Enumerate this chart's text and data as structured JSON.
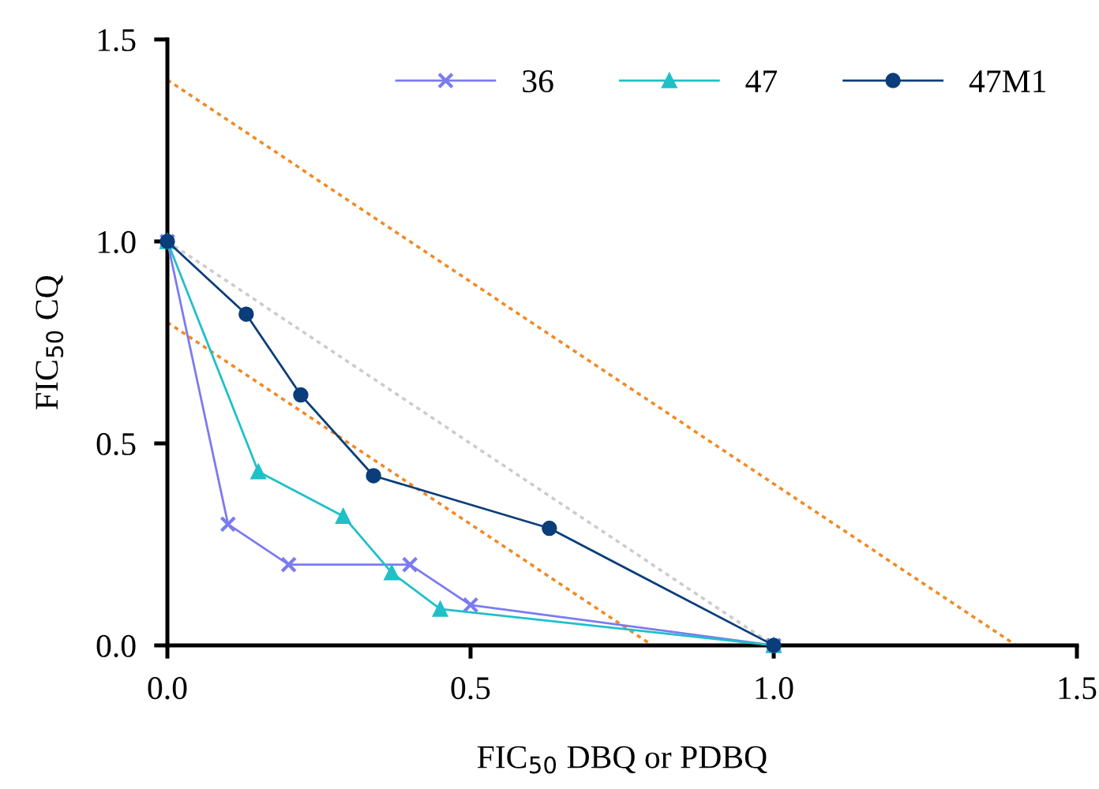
{
  "chart_data": {
    "type": "line",
    "xlabel": "FIC$_{50}$ DBQ or PDBQ",
    "ylabel": "FIC$_{50}$ CQ",
    "xlim": [
      0,
      1.5
    ],
    "ylim": [
      0,
      1.5
    ],
    "xticks": [
      {
        "value": 0,
        "label": "0.0"
      },
      0.5,
      {
        "value": 1,
        "label": "1.0"
      },
      1.5
    ],
    "yticks": [
      {
        "value": 0,
        "label": "0.0"
      },
      0.5,
      {
        "value": 1,
        "label": "1.0"
      },
      1.5
    ],
    "grid": false,
    "legend": "top right",
    "series": [
      {
        "x": [
          0,
          1.4
        ],
        "values": [
          1.4,
          0
        ],
        "color": "#f08a24",
        "line_style": "dotted",
        "marker": "none"
      },
      {
        "x": [
          0,
          0.8
        ],
        "values": [
          0.8,
          0
        ],
        "color": "#f08a24",
        "line_style": "dotted",
        "marker": "none"
      },
      {
        "x": [
          0,
          1
        ],
        "values": [
          1,
          0
        ],
        "color": "#cccccc",
        "line_style": "dotted",
        "marker": "none"
      },
      {
        "name": "36",
        "color": "#7b7bf0",
        "marker": "cross",
        "line_style": "solid",
        "x": [
          0,
          0.1,
          0.2,
          0.4,
          0.5,
          1
        ],
        "values": [
          1,
          0.3,
          0.2,
          0.2,
          0.1,
          0
        ]
      },
      {
        "name": "47",
        "color": "#1fc0c8",
        "marker": "triangle",
        "line_style": "solid",
        "x": [
          0,
          0.15,
          0.29,
          0.37,
          0.45,
          1
        ],
        "values": [
          1,
          0.43,
          0.32,
          0.18,
          0.09,
          0
        ]
      },
      {
        "name": "47M1",
        "color": "#0a3d7a",
        "marker": "circle",
        "line_style": "solid",
        "x": [
          0,
          0.13,
          0.22,
          0.34,
          0.63,
          1
        ],
        "values": [
          1,
          0.82,
          0.62,
          0.42,
          0.29,
          0
        ]
      }
    ]
  }
}
